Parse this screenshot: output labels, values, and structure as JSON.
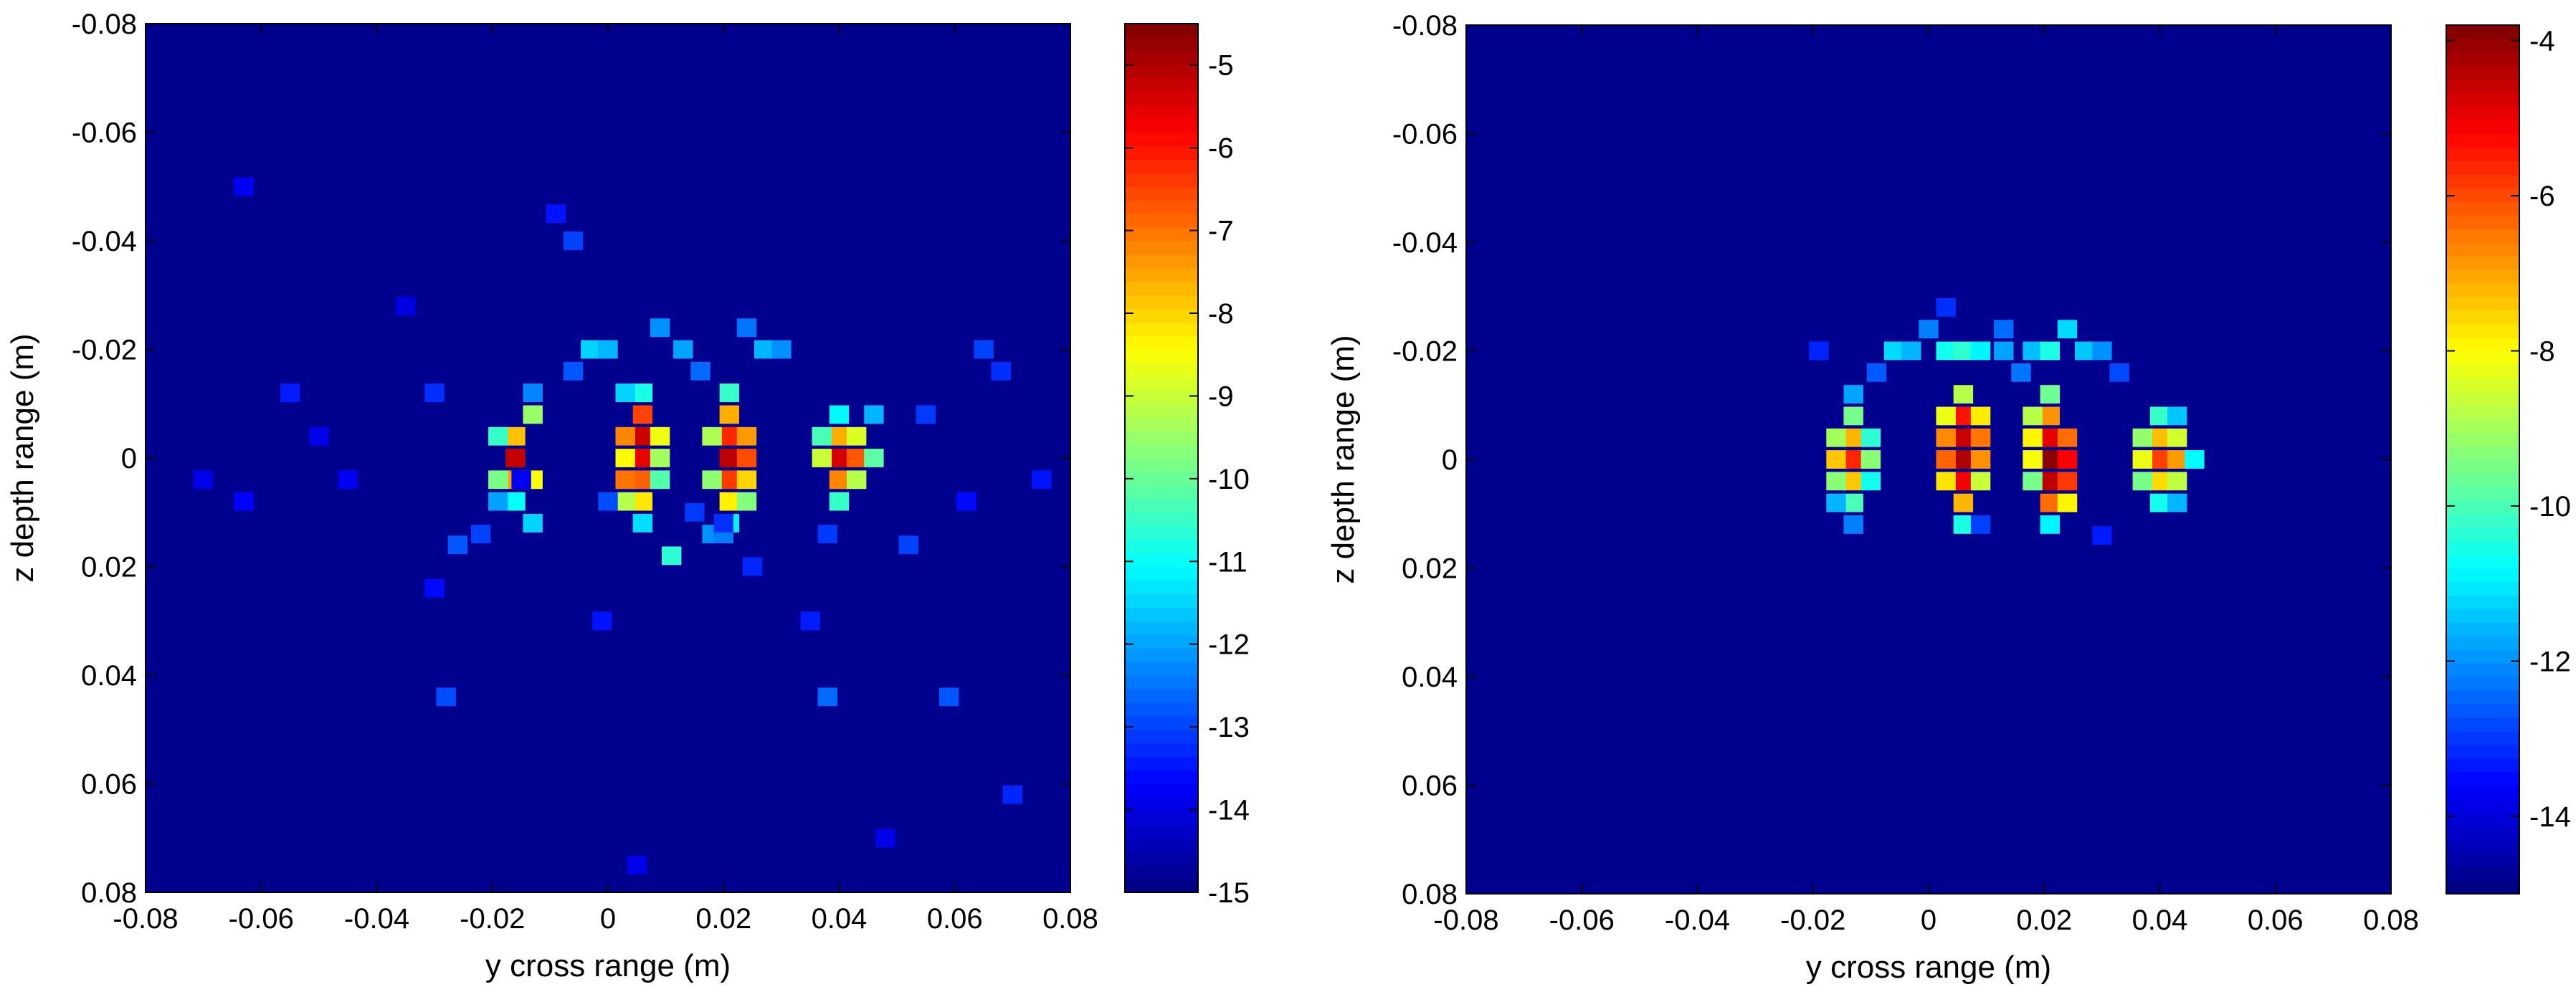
{
  "chart_data": [
    {
      "type": "heatmap",
      "title": "",
      "xlabel": "y cross range (m)",
      "ylabel": "z depth range (m)",
      "xlim": [
        -0.08,
        0.08
      ],
      "ylim": [
        -0.08,
        0.08
      ],
      "y_reversed": true,
      "x_ticks": [
        -0.08,
        -0.06,
        -0.04,
        -0.02,
        0,
        0.02,
        0.04,
        0.06,
        0.08
      ],
      "x_tick_labels": [
        "-0.08",
        "-0.06",
        "-0.04",
        "-0.02",
        "0",
        "0.02",
        "0.04",
        "0.06",
        "0.08"
      ],
      "y_ticks": [
        -0.08,
        -0.06,
        -0.04,
        -0.02,
        0,
        0.02,
        0.04,
        0.06,
        0.08
      ],
      "y_tick_labels": [
        "-0.08",
        "-0.06",
        "-0.04",
        "-0.02",
        "0",
        "0.02",
        "0.04",
        "0.06",
        "0.08"
      ],
      "grid": false,
      "colormap": "jet",
      "colorbar": {
        "min": -15,
        "max": -4.5,
        "ticks": [
          -5,
          -6,
          -7,
          -8,
          -9,
          -10,
          -11,
          -12,
          -13,
          -14,
          -15
        ],
        "tick_labels": [
          "-5",
          "-6",
          "-7",
          "-8",
          "-9",
          "-10",
          "-11",
          "-12",
          "-13",
          "-14",
          "-15"
        ]
      },
      "background_value": -15,
      "cell_size": 0.0034,
      "cells": [
        [
          -0.016,
          0,
          -5.2
        ],
        [
          -0.016,
          0.004,
          -7.5
        ],
        [
          -0.016,
          -0.004,
          -7.8
        ],
        [
          -0.013,
          -0.008,
          -9.5
        ],
        [
          -0.013,
          0.004,
          -8.5
        ],
        [
          -0.019,
          0.004,
          -9.8
        ],
        [
          -0.019,
          -0.004,
          -10.5
        ],
        [
          -0.016,
          0.008,
          -11
        ],
        [
          -0.013,
          0.012,
          -11.5
        ],
        [
          -0.019,
          0.008,
          -12
        ],
        [
          -0.013,
          -0.012,
          -12.3
        ],
        [
          0.006,
          -0.008,
          -6.5
        ],
        [
          0.006,
          -0.004,
          -5.3
        ],
        [
          0.006,
          0,
          -5.6
        ],
        [
          0.006,
          0.004,
          -6.8
        ],
        [
          0.006,
          0.008,
          -8.2
        ],
        [
          0.003,
          -0.004,
          -7.2
        ],
        [
          0.003,
          0,
          -8.4
        ],
        [
          0.003,
          0.004,
          -7
        ],
        [
          0.003,
          0.008,
          -9.2
        ],
        [
          0.009,
          -0.004,
          -8.6
        ],
        [
          0.009,
          0,
          -9.4
        ],
        [
          0.009,
          0.004,
          -10.2
        ],
        [
          0.006,
          -0.012,
          -10.8
        ],
        [
          0.003,
          -0.012,
          -11.5
        ],
        [
          0.006,
          0.012,
          -11.4
        ],
        [
          0.021,
          -0.008,
          -7.6
        ],
        [
          0.021,
          -0.004,
          -6.2
        ],
        [
          0.021,
          0,
          -5.1
        ],
        [
          0.021,
          0.004,
          -6.4
        ],
        [
          0.021,
          0.008,
          -8.3
        ],
        [
          0.024,
          -0.004,
          -7.4
        ],
        [
          0.024,
          0,
          -6.6
        ],
        [
          0.024,
          0.004,
          -8
        ],
        [
          0.018,
          -0.004,
          -9.3
        ],
        [
          0.018,
          0.004,
          -9.6
        ],
        [
          0.021,
          -0.012,
          -10.5
        ],
        [
          0.024,
          0.008,
          -9.7
        ],
        [
          0.021,
          0.012,
          -11.2
        ],
        [
          0.04,
          0,
          -5.4
        ],
        [
          0.04,
          -0.004,
          -7.6
        ],
        [
          0.04,
          0.004,
          -7.2
        ],
        [
          0.043,
          -0.004,
          -8.8
        ],
        [
          0.043,
          0,
          -6.7
        ],
        [
          0.043,
          0.004,
          -9.2
        ],
        [
          0.037,
          0,
          -9
        ],
        [
          0.037,
          -0.004,
          -10.3
        ],
        [
          0.046,
          0,
          -10.1
        ],
        [
          0.04,
          0.008,
          -10.5
        ],
        [
          0.04,
          -0.008,
          -11.1
        ],
        [
          0.046,
          -0.008,
          -11.8
        ],
        [
          -0.003,
          -0.02,
          -11.5
        ],
        [
          0.0,
          -0.02,
          -11.8
        ],
        [
          0.009,
          -0.024,
          -12.2
        ],
        [
          0.013,
          -0.02,
          -12
        ],
        [
          0.016,
          -0.016,
          -12.6
        ],
        [
          0.027,
          -0.02,
          -11.8
        ],
        [
          0.03,
          -0.02,
          -12.2
        ],
        [
          0.024,
          -0.024,
          -12.5
        ],
        [
          -0.006,
          -0.016,
          -12.8
        ],
        [
          0.011,
          0.018,
          -10.6
        ],
        [
          0.018,
          0.014,
          -12.2
        ],
        [
          0.02,
          0.014,
          -12.4
        ],
        [
          -0.026,
          0.016,
          -12.8
        ],
        [
          -0.022,
          0.014,
          -13
        ],
        [
          -0.03,
          -0.012,
          -13.2
        ],
        [
          -0.055,
          -0.012,
          -13.4
        ],
        [
          -0.006,
          -0.04,
          -13
        ],
        [
          -0.009,
          -0.045,
          -13.5
        ],
        [
          -0.028,
          0.044,
          -12.9
        ],
        [
          0.038,
          0.044,
          -12.6
        ],
        [
          0.059,
          0.044,
          -12.8
        ],
        [
          0.065,
          -0.02,
          -13
        ],
        [
          0.068,
          -0.016,
          -13.2
        ],
        [
          0.07,
          0.062,
          -13.3
        ],
        [
          0.062,
          0.008,
          -13.6
        ],
        [
          -0.045,
          0.004,
          -13.8
        ],
        [
          -0.05,
          -0.004,
          -13.9
        ],
        [
          -0.07,
          0.004,
          -13.9
        ],
        [
          -0.063,
          0.008,
          -13.7
        ],
        [
          0.075,
          0.004,
          -13.5
        ],
        [
          0.055,
          -0.008,
          -13.1
        ],
        [
          0.052,
          0.016,
          -13
        ],
        [
          0.038,
          0.014,
          -13.1
        ],
        [
          0.025,
          0.02,
          -13.3
        ],
        [
          0.0,
          0.008,
          -12.9
        ],
        [
          -0.03,
          0.024,
          -13.6
        ],
        [
          0.035,
          0.03,
          -13.4
        ],
        [
          -0.001,
          0.03,
          -13.5
        ],
        [
          0.005,
          0.075,
          -13.9
        ],
        [
          -0.015,
          0.004,
          -13.8
        ],
        [
          -0.063,
          -0.05,
          -13.8
        ],
        [
          -0.035,
          -0.028,
          -14
        ],
        [
          0.048,
          0.07,
          -13.9
        ],
        [
          0.02,
          0.012,
          -13.2
        ],
        [
          0.015,
          0.01,
          -13.1
        ]
      ]
    },
    {
      "type": "heatmap",
      "title": "",
      "xlabel": "y cross range (m)",
      "ylabel": "z depth range (m)",
      "xlim": [
        -0.08,
        0.08
      ],
      "ylim": [
        -0.08,
        0.08
      ],
      "y_reversed": true,
      "x_ticks": [
        -0.08,
        -0.06,
        -0.04,
        -0.02,
        0,
        0.02,
        0.04,
        0.06,
        0.08
      ],
      "x_tick_labels": [
        "-0.08",
        "-0.06",
        "-0.04",
        "-0.02",
        "0",
        "0.02",
        "0.04",
        "0.06",
        "0.08"
      ],
      "y_ticks": [
        -0.08,
        -0.06,
        -0.04,
        -0.02,
        0,
        0.02,
        0.04,
        0.06,
        0.08
      ],
      "y_tick_labels": [
        "-0.08",
        "-0.06",
        "-0.04",
        "-0.02",
        "0",
        "0.02",
        "0.04",
        "0.06",
        "0.08"
      ],
      "grid": false,
      "colormap": "jet",
      "colorbar": {
        "min": -15,
        "max": -3.8,
        "ticks": [
          -4,
          -6,
          -8,
          -10,
          -12,
          -14
        ],
        "tick_labels": [
          "-4",
          "-6",
          "-8",
          "-10",
          "-12",
          "-14"
        ]
      },
      "background_value": -15,
      "cell_size": 0.0034,
      "cells": [
        [
          -0.013,
          -0.008,
          -9.5
        ],
        [
          -0.013,
          -0.004,
          -7.2
        ],
        [
          -0.013,
          0,
          -5.6
        ],
        [
          -0.013,
          0.004,
          -7.4
        ],
        [
          -0.013,
          0.008,
          -10
        ],
        [
          -0.016,
          -0.004,
          -9
        ],
        [
          -0.016,
          0,
          -7.4
        ],
        [
          -0.016,
          0.004,
          -9.3
        ],
        [
          -0.01,
          -0.004,
          -10.3
        ],
        [
          -0.01,
          0,
          -9.3
        ],
        [
          -0.01,
          0.004,
          -10.6
        ],
        [
          -0.013,
          -0.012,
          -11.8
        ],
        [
          -0.013,
          0.012,
          -12.2
        ],
        [
          -0.016,
          0.008,
          -11.6
        ],
        [
          0.006,
          -0.012,
          -8.8
        ],
        [
          0.006,
          -0.008,
          -5.4
        ],
        [
          0.006,
          -0.004,
          -4.6
        ],
        [
          0.006,
          0,
          -4.3
        ],
        [
          0.006,
          0.004,
          -5.1
        ],
        [
          0.006,
          0.008,
          -7.2
        ],
        [
          0.003,
          -0.008,
          -8.2
        ],
        [
          0.003,
          -0.004,
          -6.7
        ],
        [
          0.003,
          0,
          -6.3
        ],
        [
          0.003,
          0.004,
          -7.7
        ],
        [
          0.009,
          -0.008,
          -7.8
        ],
        [
          0.009,
          -0.004,
          -6.5
        ],
        [
          0.009,
          0,
          -6.8
        ],
        [
          0.009,
          0.004,
          -8.6
        ],
        [
          0.006,
          0.012,
          -10.5
        ],
        [
          0.021,
          -0.012,
          -9.6
        ],
        [
          0.021,
          -0.008,
          -6.8
        ],
        [
          0.021,
          -0.004,
          -4.9
        ],
        [
          0.021,
          0,
          -3.9
        ],
        [
          0.021,
          0.004,
          -4.5
        ],
        [
          0.021,
          0.008,
          -6.4
        ],
        [
          0.024,
          -0.004,
          -6.4
        ],
        [
          0.024,
          0,
          -5.2
        ],
        [
          0.024,
          0.004,
          -5.8
        ],
        [
          0.024,
          0.008,
          -7.9
        ],
        [
          0.018,
          -0.008,
          -8.8
        ],
        [
          0.018,
          -0.004,
          -7.9
        ],
        [
          0.018,
          0,
          -8.1
        ],
        [
          0.018,
          0.004,
          -9.5
        ],
        [
          0.021,
          0.012,
          -10.9
        ],
        [
          0.04,
          0,
          -5.9
        ],
        [
          0.04,
          -0.004,
          -7.3
        ],
        [
          0.04,
          0.004,
          -7.6
        ],
        [
          0.043,
          -0.004,
          -8.5
        ],
        [
          0.043,
          0,
          -6.9
        ],
        [
          0.043,
          0.004,
          -8.7
        ],
        [
          0.037,
          -0.004,
          -9.2
        ],
        [
          0.037,
          0,
          -8.2
        ],
        [
          0.037,
          0.004,
          -9.5
        ],
        [
          0.04,
          -0.008,
          -10.2
        ],
        [
          0.04,
          0.008,
          -10.6
        ],
        [
          0.046,
          0,
          -10.8
        ],
        [
          0.043,
          0.008,
          -11.6
        ],
        [
          0.043,
          -0.008,
          -11.4
        ],
        [
          -0.006,
          -0.02,
          -11.2
        ],
        [
          -0.003,
          -0.02,
          -11.6
        ],
        [
          0.0,
          -0.024,
          -12.2
        ],
        [
          0.003,
          -0.02,
          -10.6
        ],
        [
          0.006,
          -0.02,
          -10.3
        ],
        [
          0.009,
          -0.02,
          -10.9
        ],
        [
          0.013,
          -0.02,
          -11.8
        ],
        [
          0.016,
          -0.016,
          -12.3
        ],
        [
          0.018,
          -0.02,
          -11.5
        ],
        [
          0.021,
          -0.02,
          -10.5
        ],
        [
          0.024,
          -0.024,
          -11.2
        ],
        [
          0.027,
          -0.02,
          -11.4
        ],
        [
          0.03,
          -0.02,
          -12
        ],
        [
          -0.009,
          -0.016,
          -12.6
        ],
        [
          0.033,
          -0.016,
          -12.8
        ],
        [
          0.013,
          -0.024,
          -12.4
        ],
        [
          0.003,
          -0.028,
          -13.1
        ],
        [
          0.009,
          0.012,
          -12.9
        ],
        [
          0.03,
          0.014,
          -13.3
        ],
        [
          -0.019,
          -0.02,
          -13.2
        ]
      ]
    }
  ]
}
